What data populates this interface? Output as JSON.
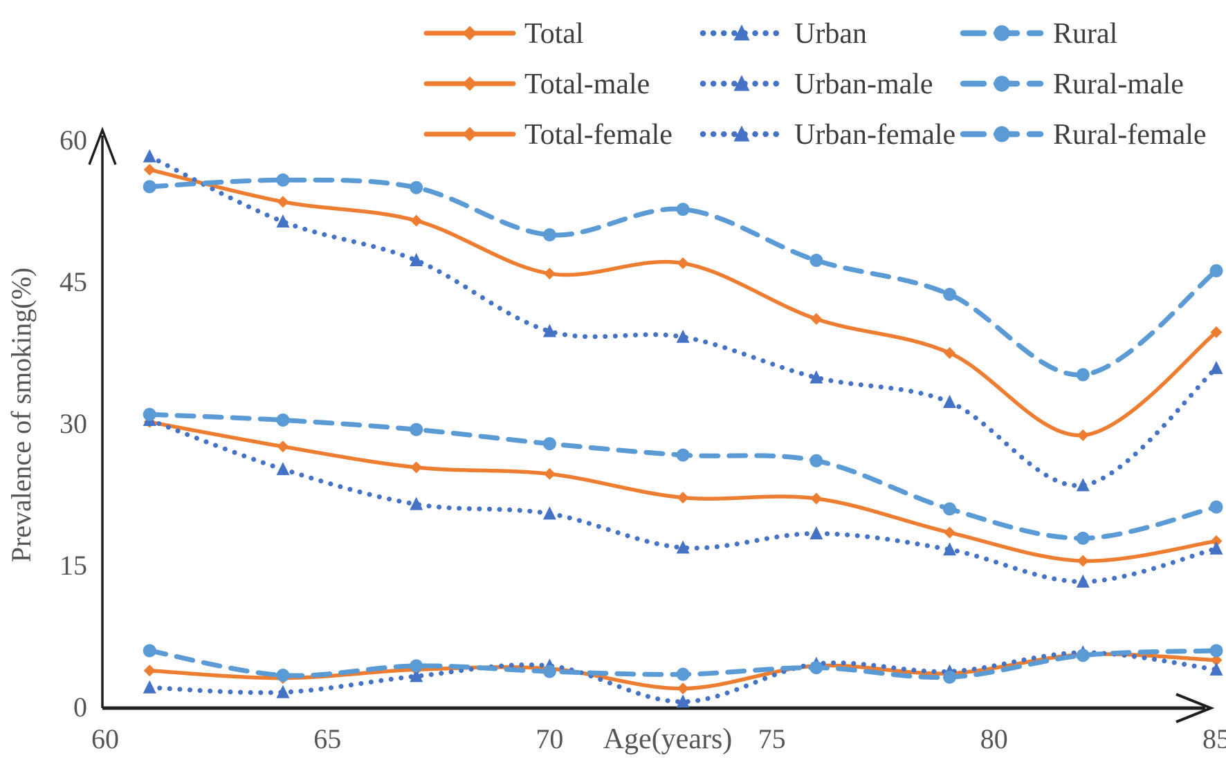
{
  "figure": {
    "description": "Line chart of smoking prevalence by age, overall and by sex, for total/urban/rural populations"
  },
  "colors": {
    "orange": "#ED7D31",
    "blue": "#4472C4",
    "light_blue": "#5B9BD5",
    "axis": "#1f1f1f",
    "tick_text": "#555555",
    "legend_text": "#3d3d3d"
  },
  "chart_data": {
    "type": "line",
    "title": "",
    "xlabel": "Age(years)",
    "ylabel": "Prevalence of smoking(%)",
    "x_ticks": [
      60,
      65,
      70,
      75,
      80,
      85
    ],
    "y_ticks": [
      0,
      15,
      30,
      45,
      60
    ],
    "xlim": [
      60,
      85.5
    ],
    "ylim": [
      0,
      60
    ],
    "grid": false,
    "legend_position": "top",
    "x": [
      61,
      64,
      67,
      70,
      73,
      76,
      79,
      82,
      85
    ],
    "series": [
      {
        "name": "Total",
        "style": "solid-diamond",
        "color_key": "orange",
        "values": [
          30.2,
          27.6,
          25.4,
          24.7,
          22.2,
          22.1,
          18.5,
          15.5,
          17.6
        ]
      },
      {
        "name": "Urban",
        "style": "dotted-triangle",
        "color_key": "blue",
        "values": [
          30.4,
          25.2,
          21.5,
          20.5,
          16.9,
          18.4,
          16.7,
          13.3,
          16.8
        ]
      },
      {
        "name": "Rural",
        "style": "dashed-circle",
        "color_key": "light_blue",
        "values": [
          31.0,
          30.4,
          29.4,
          27.9,
          26.7,
          26.1,
          21.0,
          17.9,
          21.2
        ]
      },
      {
        "name": "Total-male",
        "style": "solid-diamond",
        "color_key": "orange",
        "values": [
          56.9,
          53.5,
          51.5,
          45.9,
          47.0,
          41.1,
          37.5,
          28.8,
          39.7
        ]
      },
      {
        "name": "Urban-male",
        "style": "dotted-triangle",
        "color_key": "blue",
        "values": [
          58.3,
          51.4,
          47.3,
          39.8,
          39.2,
          34.9,
          32.3,
          23.5,
          35.9
        ]
      },
      {
        "name": "Rural-male",
        "style": "dashed-circle",
        "color_key": "light_blue",
        "values": [
          55.1,
          55.8,
          55.0,
          50.0,
          52.7,
          47.3,
          43.7,
          35.2,
          46.2
        ]
      },
      {
        "name": "Total-female",
        "style": "solid-diamond",
        "color_key": "orange",
        "values": [
          3.9,
          3.1,
          4.0,
          4.1,
          2.0,
          4.4,
          3.6,
          5.6,
          5.0
        ]
      },
      {
        "name": "Urban-female",
        "style": "dotted-triangle",
        "color_key": "blue",
        "values": [
          2.1,
          1.6,
          3.3,
          4.4,
          0.6,
          4.6,
          3.8,
          5.8,
          4.0
        ]
      },
      {
        "name": "Rural-female",
        "style": "dashed-circle",
        "color_key": "light_blue",
        "values": [
          6.0,
          3.4,
          4.4,
          3.8,
          3.5,
          4.2,
          3.2,
          5.5,
          6.0
        ]
      }
    ]
  }
}
